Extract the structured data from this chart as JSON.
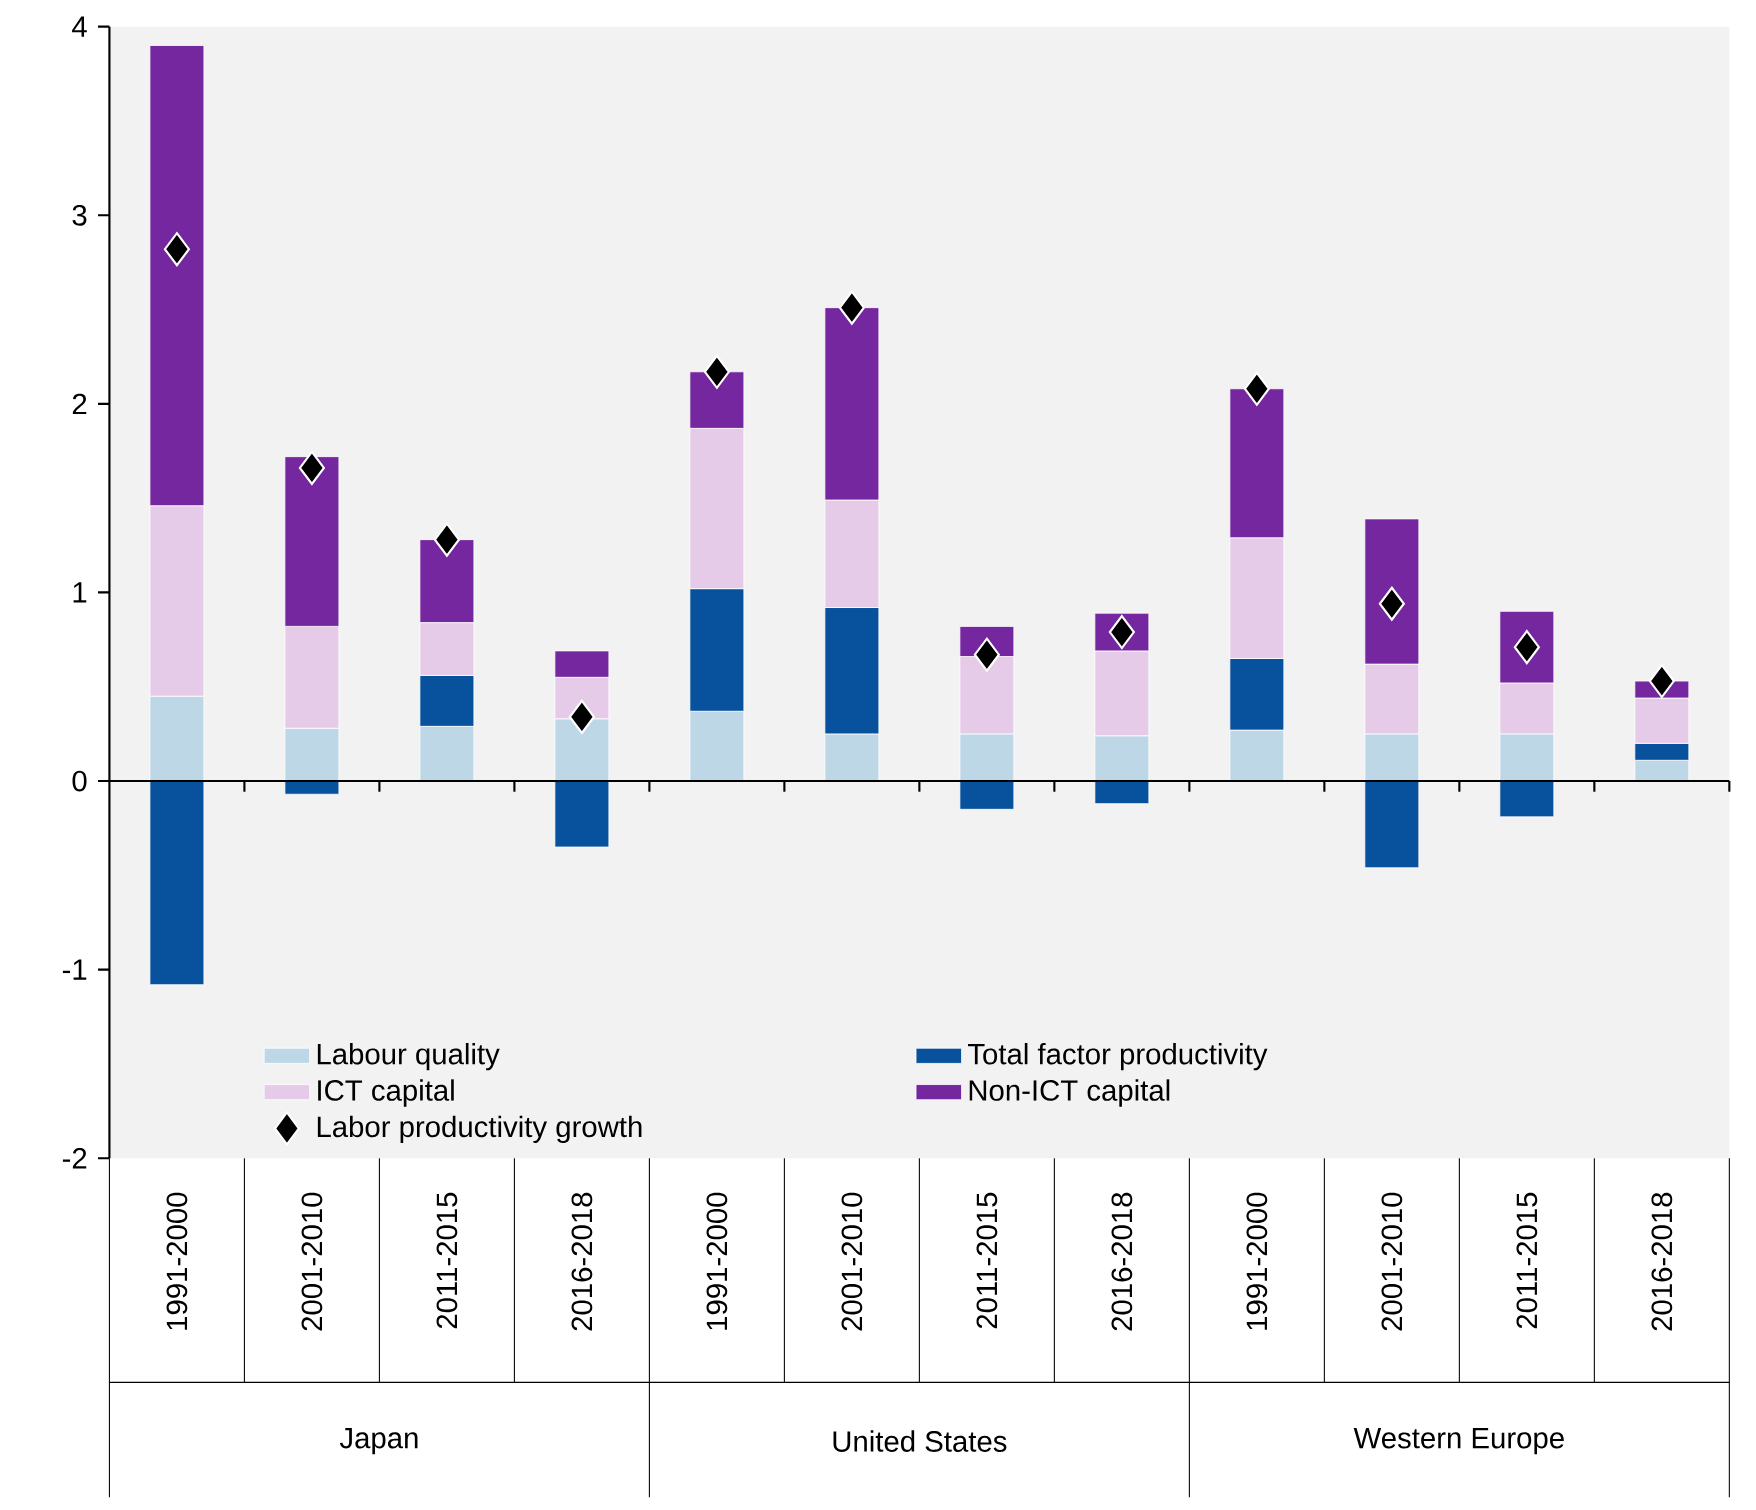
{
  "chart_data": {
    "type": "bar",
    "stacked": true,
    "legend": "bottom left",
    "categories": [
      "1991-2000",
      "2001-2010",
      "2011-2015",
      "2016-2018",
      "1991-2000",
      "2001-2010",
      "2011-2015",
      "2016-2018",
      "1991-2000",
      "2001-2010",
      "2011-2015",
      "2016-2018"
    ],
    "series": [
      {
        "name": "Labour quality",
        "color": "#bdd7e7",
        "values": [
          0.45,
          0.28,
          0.29,
          0.33,
          0.37,
          0.25,
          0.25,
          0.24,
          0.27,
          0.25,
          0.25,
          0.11
        ]
      },
      {
        "name": "Total factor productivity",
        "color": "#08519c",
        "values": [
          -1.08,
          -0.07,
          0.27,
          -0.35,
          0.65,
          0.67,
          -0.15,
          -0.12,
          0.38,
          -0.46,
          -0.19,
          0.09
        ]
      },
      {
        "name": "ICT capital",
        "color": "#e6cbe9",
        "values": [
          1.01,
          0.54,
          0.28,
          0.22,
          0.85,
          0.57,
          0.41,
          0.45,
          0.64,
          0.37,
          0.27,
          0.24
        ]
      },
      {
        "name": "Non-ICT capital",
        "color": "#7527a0",
        "values": [
          2.44,
          0.9,
          0.44,
          0.14,
          0.3,
          1.02,
          0.16,
          0.2,
          0.79,
          0.77,
          0.38,
          0.09
        ]
      },
      {
        "name": "Labor productivity growth",
        "type": "scatter",
        "marker": "diamond",
        "color": "#000000",
        "values": [
          2.82,
          1.66,
          1.28,
          0.34,
          2.17,
          2.51,
          0.67,
          0.79,
          2.08,
          0.94,
          0.71,
          0.53
        ]
      }
    ],
    "ylim": [
      -2,
      4
    ],
    "yticks": [
      -2,
      -1,
      0,
      1,
      2,
      3,
      4
    ],
    "annotations": [
      "Japan",
      "United States",
      "Western Europe"
    ]
  }
}
